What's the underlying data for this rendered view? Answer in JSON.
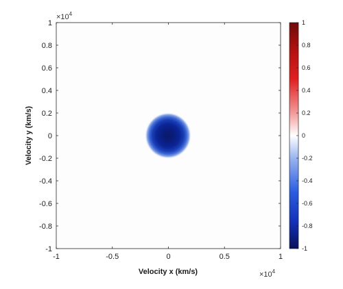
{
  "chart_data": {
    "type": "heatmap",
    "xlabel": "Velocity x (km/s)",
    "ylabel": "Velocity y (km/s)",
    "x_multiplier": "×10",
    "y_multiplier": "×10",
    "x_multiplier_exp": "4",
    "y_multiplier_exp": "4",
    "xlim": [
      -1,
      1
    ],
    "ylim": [
      -1,
      1
    ],
    "x_ticks": [
      -1,
      -0.5,
      0,
      0.5,
      1
    ],
    "x_tick_labels": [
      "-1",
      "-0.5",
      "0",
      "0.5",
      "1"
    ],
    "y_ticks": [
      1,
      0.8,
      0.6,
      0.4,
      0.2,
      0,
      -0.2,
      -0.4,
      -0.6,
      -0.8,
      -1
    ],
    "y_tick_labels": [
      "1",
      "0.8",
      "0.6",
      "0.4",
      "0.2",
      "0",
      "-0.2",
      "-0.4",
      "-0.6",
      "-0.8",
      "-1"
    ],
    "colorbar": {
      "range": [
        -1,
        1
      ],
      "ticks": [
        1,
        0.8,
        0.6,
        0.4,
        0.2,
        0,
        -0.2,
        -0.4,
        -0.6,
        -0.8,
        -1
      ],
      "tick_labels": [
        "1",
        "0.8",
        "0.6",
        "0.4",
        "0.2",
        "0",
        "-0.2",
        "-0.4",
        "-0.6",
        "-0.8",
        "-1"
      ],
      "colormap": "blue-white-red diverging",
      "color_min": "#08105a",
      "color_mid": "#ffffff",
      "color_max": "#6e0b0b"
    },
    "feature": {
      "shape": "ring",
      "center": [
        0,
        0
      ],
      "inner_radius": 0.05,
      "peak_radius": 0.1,
      "outer_radius": 0.2,
      "peak_value": -1,
      "center_value": -0.85
    },
    "grid": false
  }
}
